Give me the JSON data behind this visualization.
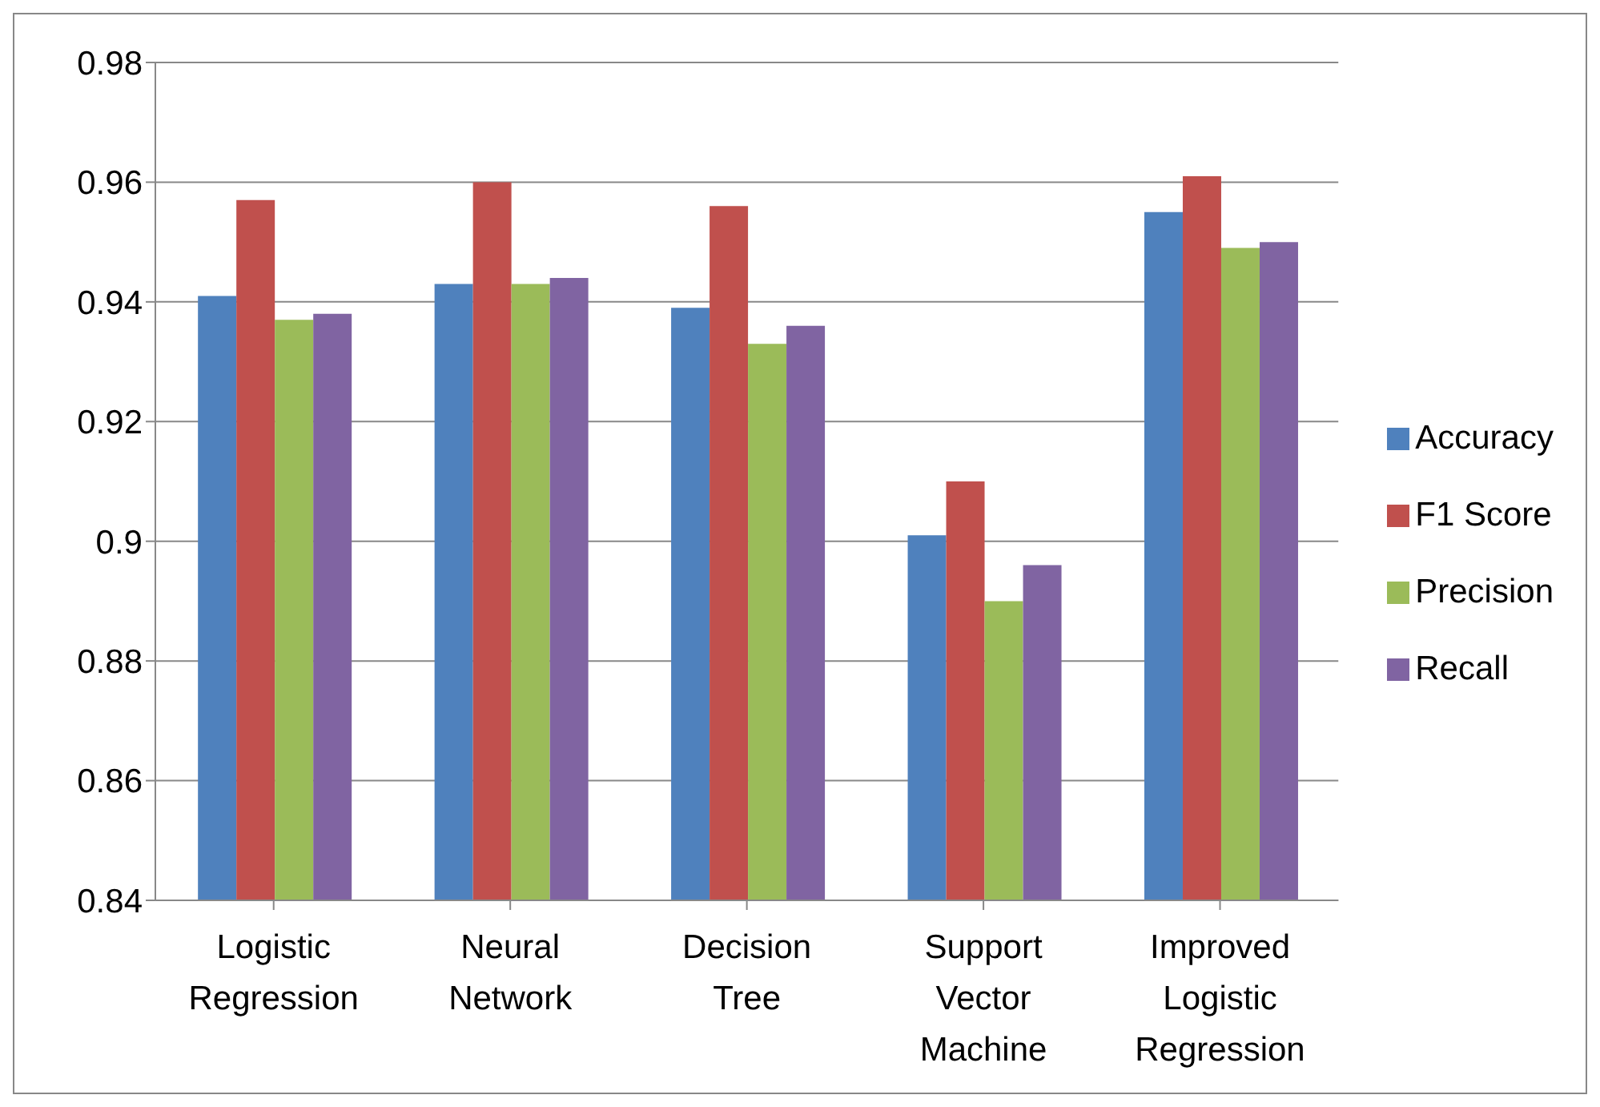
{
  "chart_data": {
    "type": "bar",
    "categories": [
      "Logistic Regression",
      "Neural Network",
      "Decision Tree",
      "Support Vector Machine",
      "Improved Logistic Regression"
    ],
    "series": [
      {
        "name": "Accuracy",
        "color": "#4f81bd",
        "values": [
          0.941,
          0.943,
          0.939,
          0.901,
          0.955
        ]
      },
      {
        "name": "F1 Score",
        "color": "#c0504d",
        "values": [
          0.957,
          0.96,
          0.956,
          0.91,
          0.961
        ]
      },
      {
        "name": "Precision",
        "color": "#9bbb59",
        "values": [
          0.937,
          0.943,
          0.933,
          0.89,
          0.949
        ]
      },
      {
        "name": "Recall",
        "color": "#8064a2",
        "values": [
          0.938,
          0.944,
          0.936,
          0.896,
          0.95
        ]
      }
    ],
    "ylim": [
      0.84,
      0.98
    ],
    "yticks": [
      0.84,
      0.86,
      0.88,
      0.9,
      0.92,
      0.94,
      0.96,
      0.98
    ],
    "grid": "y",
    "legend": "right"
  }
}
